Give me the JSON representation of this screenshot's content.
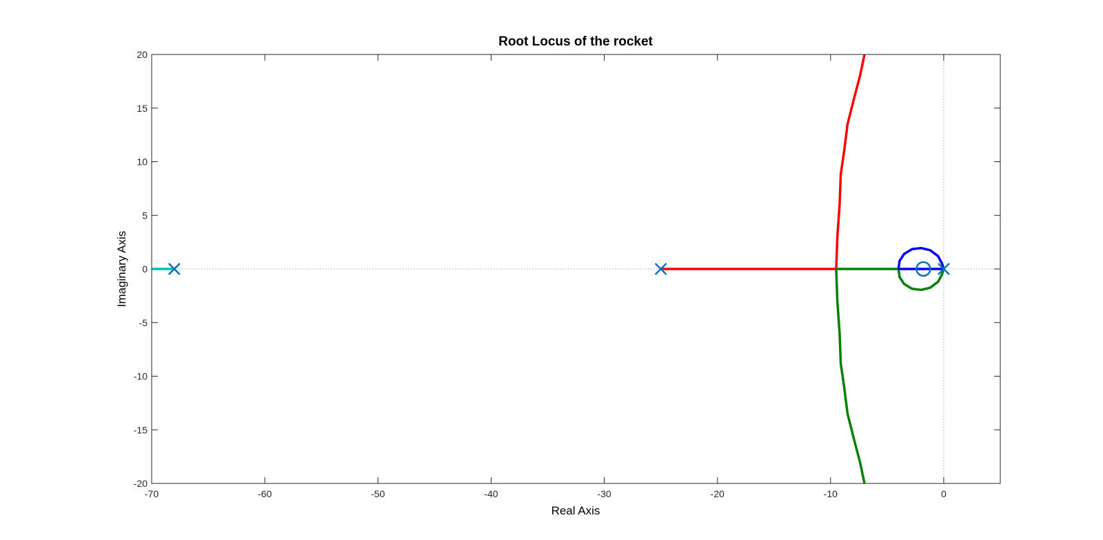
{
  "chart_data": {
    "type": "line",
    "title": "Root Locus of the rocket",
    "xlabel": "Real Axis",
    "ylabel": "Imaginary Axis",
    "xlim": [
      -70,
      5
    ],
    "ylim": [
      -20,
      20
    ],
    "xticks": [
      -70,
      -60,
      -50,
      -40,
      -30,
      -20,
      -10,
      0
    ],
    "yticks": [
      -20,
      -15,
      -10,
      -5,
      0,
      5,
      10,
      15,
      20
    ],
    "grid": false,
    "reference_lines": {
      "real_axis": 0,
      "imag_axis": 0
    },
    "poles": [
      [
        -68,
        0
      ],
      [
        -25,
        0
      ],
      [
        0,
        0
      ]
    ],
    "zeros": [
      [
        -1.8,
        0
      ]
    ],
    "marker_color": "#0072bd",
    "series": [
      {
        "color": "#00bfbf",
        "points": [
          [
            -68,
            0
          ],
          [
            -70,
            0
          ]
        ]
      },
      {
        "color": "#ff0000",
        "points": [
          [
            -25,
            0
          ],
          [
            -9.5,
            0
          ],
          [
            -9.4,
            3
          ],
          [
            -9.2,
            6
          ],
          [
            -9.1,
            8.8
          ],
          [
            -8.8,
            11
          ],
          [
            -8.5,
            13.5
          ],
          [
            -7.9,
            16
          ],
          [
            -7.4,
            18
          ],
          [
            -7.0,
            20
          ]
        ]
      },
      {
        "color": "#008000",
        "points": [
          [
            -9.5,
            0
          ],
          [
            -9.4,
            -3
          ],
          [
            -9.2,
            -6
          ],
          [
            -9.1,
            -8.8
          ],
          [
            -8.8,
            -11
          ],
          [
            -8.5,
            -13.5
          ],
          [
            -7.9,
            -16
          ],
          [
            -7.4,
            -18
          ],
          [
            -7.0,
            -20
          ]
        ]
      },
      {
        "color": "#008000",
        "points": [
          [
            -9.5,
            0
          ],
          [
            -4.0,
            0
          ],
          [
            -3.9,
            -0.75
          ],
          [
            -3.5,
            -1.4
          ],
          [
            -2.8,
            -1.85
          ],
          [
            -2.0,
            -1.95
          ],
          [
            -1.2,
            -1.75
          ],
          [
            -0.5,
            -1.2
          ],
          [
            -0.15,
            -0.5
          ],
          [
            0,
            0
          ]
        ]
      },
      {
        "color": "#0000ff",
        "points": [
          [
            -4.0,
            0
          ],
          [
            -3.9,
            0.75
          ],
          [
            -3.5,
            1.4
          ],
          [
            -2.8,
            1.85
          ],
          [
            -2.0,
            1.95
          ],
          [
            -1.2,
            1.75
          ],
          [
            -0.5,
            1.2
          ],
          [
            -0.15,
            0.5
          ],
          [
            0,
            0
          ]
        ]
      },
      {
        "color": "#0000ff",
        "points": [
          [
            -4.0,
            0
          ],
          [
            0,
            0
          ]
        ]
      }
    ]
  }
}
